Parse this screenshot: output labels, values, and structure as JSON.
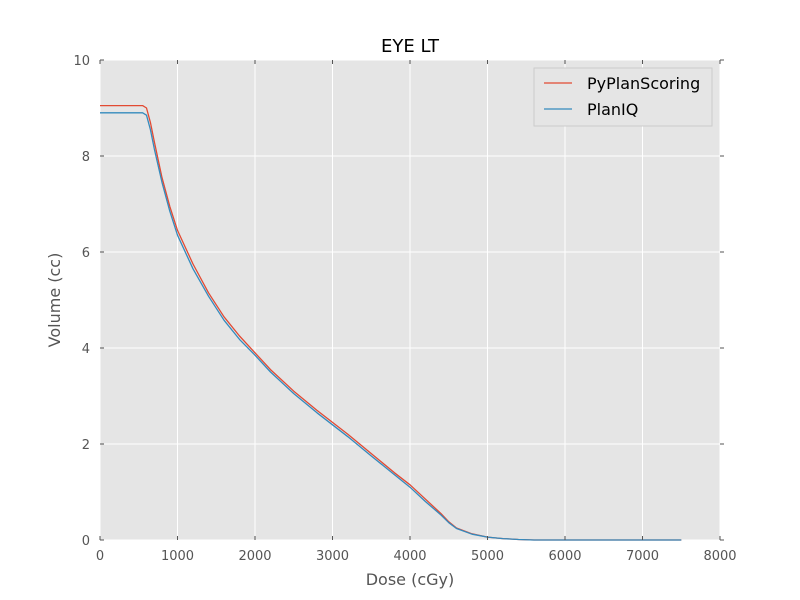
{
  "chart_data": {
    "type": "line",
    "title": "EYE LT",
    "xlabel": "Dose (cGy)",
    "ylabel": "Volume (cc)",
    "xlim": [
      0,
      8000
    ],
    "ylim": [
      0,
      10
    ],
    "xticks": [
      "0",
      "1000",
      "2000",
      "3000",
      "4000",
      "5000",
      "6000",
      "7000",
      "8000"
    ],
    "yticks": [
      "0",
      "2",
      "4",
      "6",
      "8",
      "10"
    ],
    "grid": true,
    "legend_position": "top-right",
    "series": [
      {
        "name": "PyPlanScoring",
        "color": "#e24a33",
        "x": [
          0,
          400,
          550,
          600,
          650,
          700,
          800,
          900,
          1000,
          1200,
          1400,
          1600,
          1800,
          2000,
          2200,
          2500,
          2800,
          3000,
          3200,
          3500,
          3800,
          4000,
          4200,
          4400,
          4500,
          4600,
          4800,
          5000,
          5200,
          5400,
          5600,
          6000,
          7000,
          7500
        ],
        "values": [
          9.05,
          9.05,
          9.05,
          9.0,
          8.7,
          8.3,
          7.55,
          6.95,
          6.45,
          5.75,
          5.15,
          4.65,
          4.25,
          3.9,
          3.55,
          3.1,
          2.7,
          2.45,
          2.2,
          1.8,
          1.4,
          1.15,
          0.85,
          0.55,
          0.38,
          0.25,
          0.13,
          0.06,
          0.03,
          0.01,
          0.0,
          0.0,
          0.0,
          0.0
        ]
      },
      {
        "name": "PlanIQ",
        "color": "#348abd",
        "x": [
          0,
          400,
          550,
          600,
          650,
          700,
          800,
          900,
          1000,
          1200,
          1400,
          1600,
          1800,
          2000,
          2200,
          2500,
          2800,
          3000,
          3200,
          3500,
          3800,
          4000,
          4200,
          4400,
          4500,
          4600,
          4800,
          5000,
          5200,
          5400,
          5600,
          6000,
          7000,
          7500
        ],
        "values": [
          8.9,
          8.9,
          8.9,
          8.85,
          8.55,
          8.15,
          7.45,
          6.85,
          6.35,
          5.65,
          5.08,
          4.58,
          4.18,
          3.85,
          3.5,
          3.05,
          2.65,
          2.4,
          2.15,
          1.75,
          1.36,
          1.1,
          0.8,
          0.52,
          0.36,
          0.24,
          0.12,
          0.06,
          0.03,
          0.01,
          0.0,
          0.0,
          0.0,
          0.0
        ]
      }
    ]
  }
}
